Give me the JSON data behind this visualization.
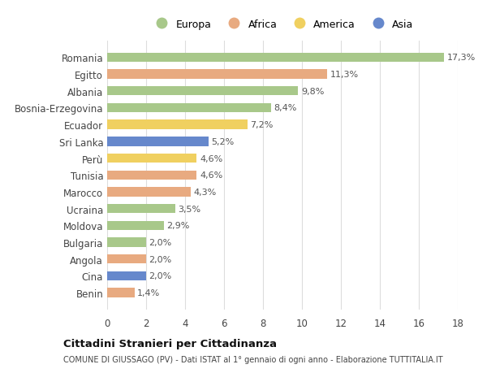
{
  "countries": [
    "Romania",
    "Egitto",
    "Albania",
    "Bosnia-Erzegovina",
    "Ecuador",
    "Sri Lanka",
    "Perù",
    "Tunisia",
    "Marocco",
    "Ucraina",
    "Moldova",
    "Bulgaria",
    "Angola",
    "Cina",
    "Benin"
  ],
  "values": [
    17.3,
    11.3,
    9.8,
    8.4,
    7.2,
    5.2,
    4.6,
    4.6,
    4.3,
    3.5,
    2.9,
    2.0,
    2.0,
    2.0,
    1.4
  ],
  "categories": [
    "Europa",
    "Africa",
    "Europa",
    "Europa",
    "America",
    "Asia",
    "America",
    "Africa",
    "Africa",
    "Europa",
    "Europa",
    "Europa",
    "Africa",
    "Asia",
    "Africa"
  ],
  "colors": {
    "Europa": "#a8c88a",
    "Africa": "#e8aa80",
    "America": "#f0d060",
    "Asia": "#6688cc"
  },
  "legend_order": [
    "Europa",
    "Africa",
    "America",
    "Asia"
  ],
  "xlim": [
    0,
    18
  ],
  "xticks": [
    0,
    2,
    4,
    6,
    8,
    10,
    12,
    14,
    16,
    18
  ],
  "title1": "Cittadini Stranieri per Cittadinanza",
  "title2": "COMUNE DI GIUSSAGO (PV) - Dati ISTAT al 1° gennaio di ogni anno - Elaborazione TUTTITALIA.IT",
  "background_color": "#ffffff",
  "bar_height": 0.55
}
